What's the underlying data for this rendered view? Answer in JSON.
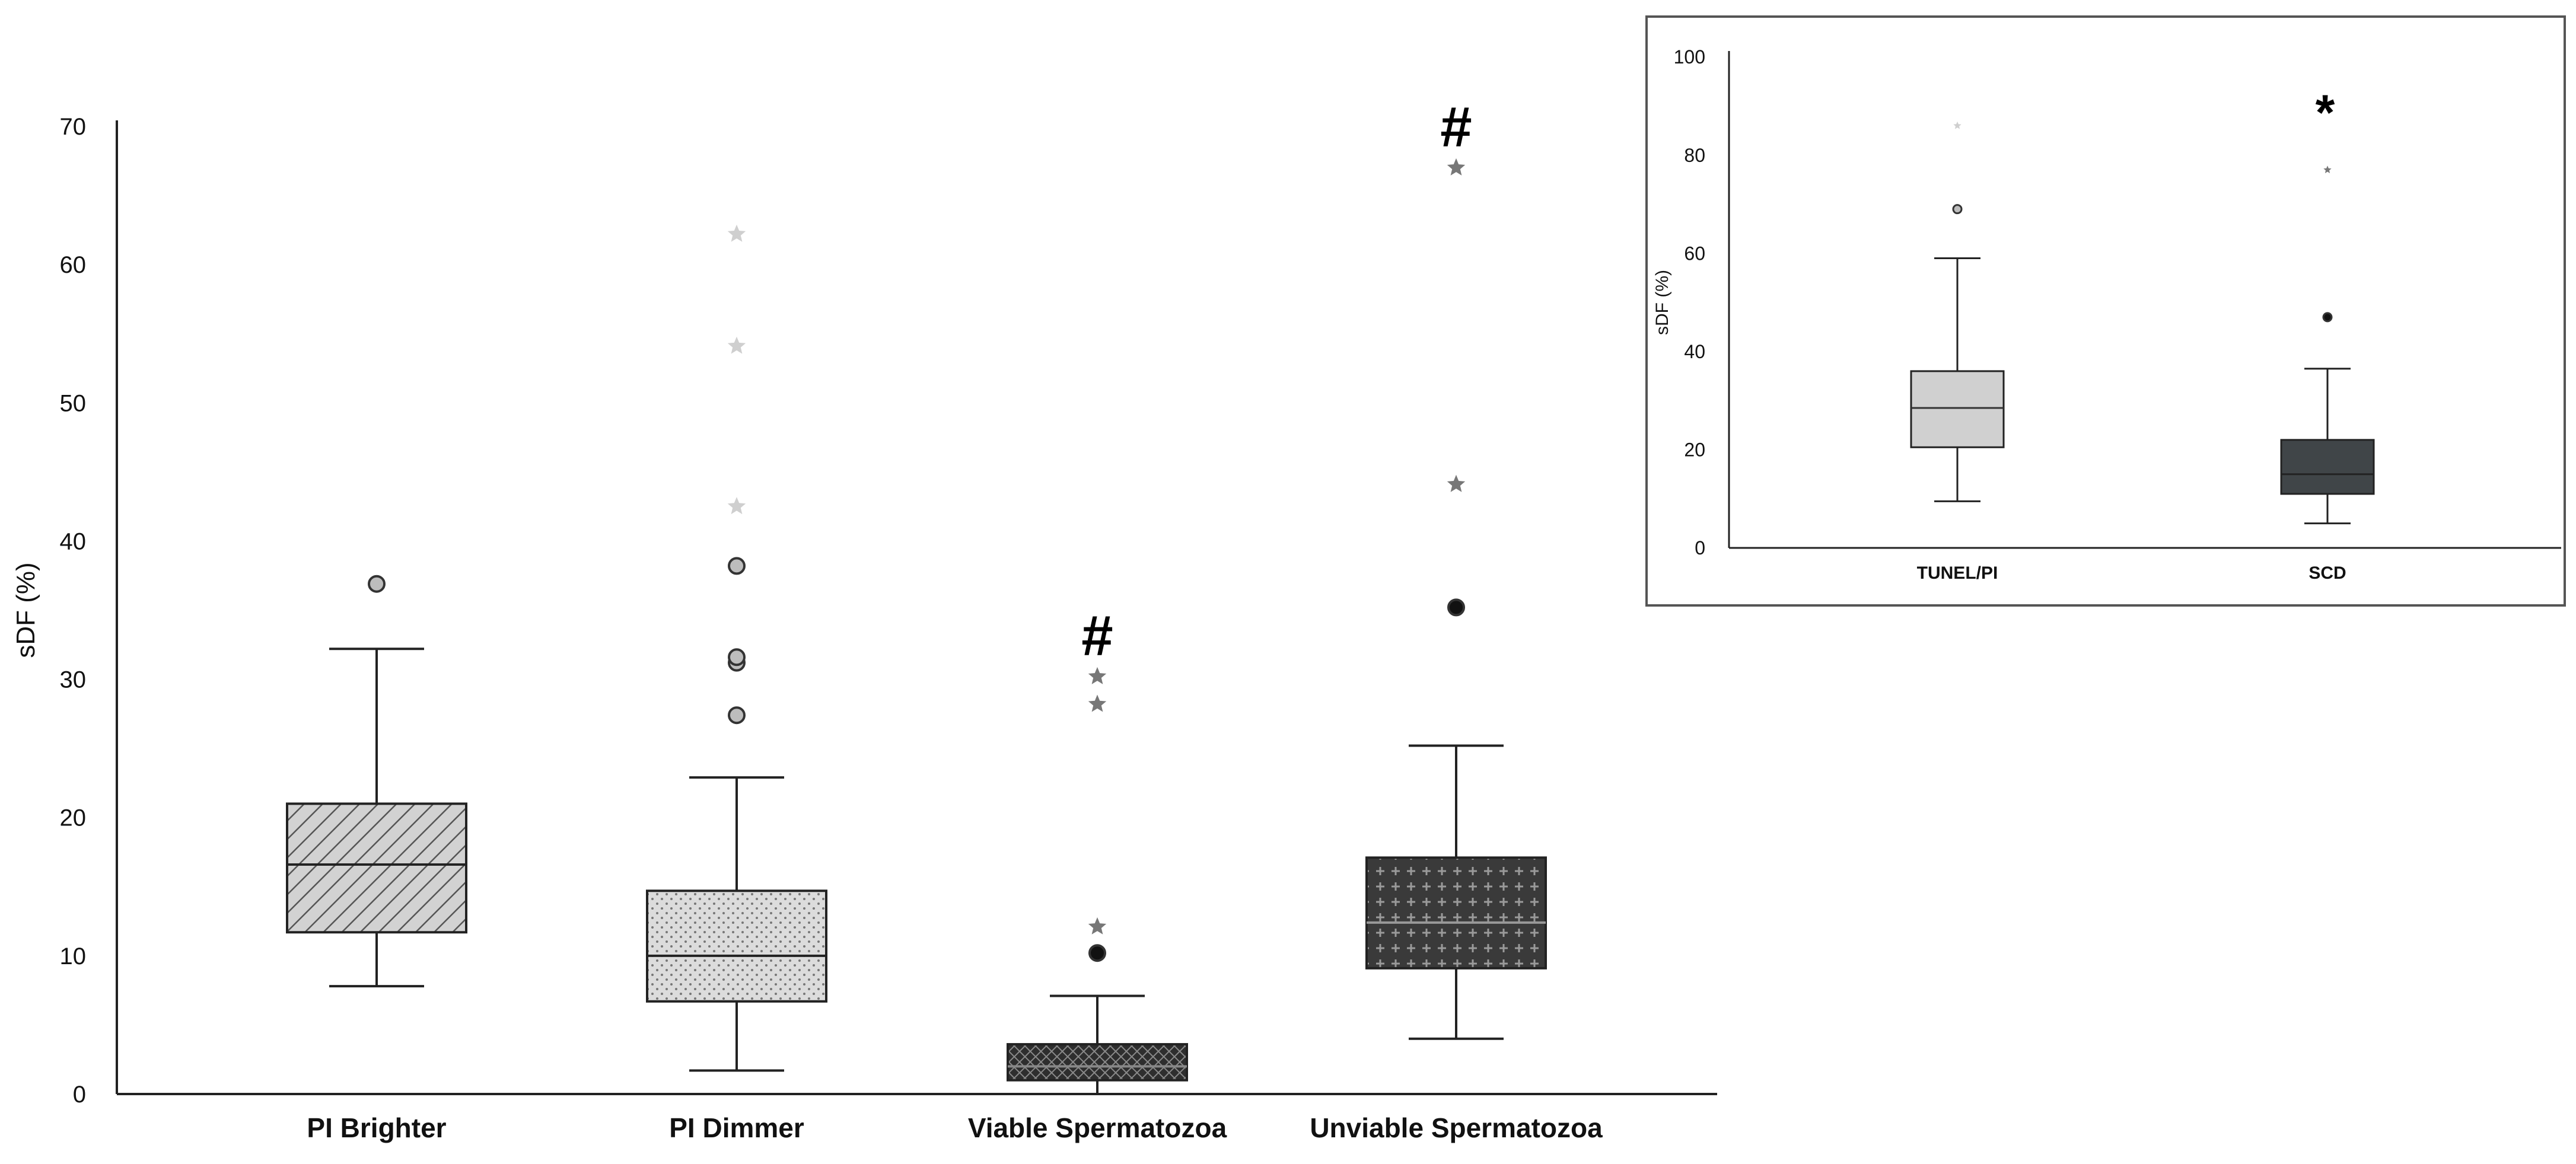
{
  "chart_data": [
    {
      "type": "box",
      "ylabel": "sDF (%)",
      "ylim": [
        0,
        70
      ],
      "yticks": [
        0,
        10,
        20,
        30,
        40,
        50,
        60,
        70
      ],
      "categories": [
        "PI Brighter",
        "PI Dimmer",
        "Viable Spermatozoa",
        "Unviable Spermatozoa"
      ],
      "boxes": [
        {
          "name": "PI Brighter",
          "whisker_low": 7.8,
          "q1": 11.7,
          "median": 16.6,
          "q3": 21.0,
          "whisker_high": 32.2,
          "outliers": [
            36.9
          ],
          "extremes": [],
          "annotation": "",
          "pattern": "diagonal-lines",
          "fill": "#cfcfcf"
        },
        {
          "name": "PI Dimmer",
          "whisker_low": 1.7,
          "q1": 6.7,
          "median": 10.0,
          "q3": 14.7,
          "whisker_high": 22.9,
          "outliers": [
            27.4,
            31.2,
            31.6,
            38.2
          ],
          "extremes": [
            42.5,
            54.1,
            62.2
          ],
          "annotation": "",
          "pattern": "dots",
          "fill": "#d9d9d9"
        },
        {
          "name": "Viable Spermatozoa",
          "whisker_low": 0.0,
          "q1": 1.0,
          "median": 2.0,
          "q3": 3.6,
          "whisker_high": 7.1,
          "outliers": [
            10.2
          ],
          "extremes": [
            12.1,
            28.2,
            30.2
          ],
          "annotation": "#",
          "pattern": "crosshatch",
          "fill": "#333333"
        },
        {
          "name": "Unviable Spermatozoa",
          "whisker_low": 4.0,
          "q1": 9.1,
          "median": 12.4,
          "q3": 17.1,
          "whisker_high": 25.2,
          "outliers": [
            35.2
          ],
          "extremes": [
            44.1,
            67.0
          ],
          "annotation": "#",
          "pattern": "crosses",
          "fill": "#3a3a3a"
        }
      ]
    },
    {
      "type": "box",
      "ylabel": "sDF (%)",
      "ylim": [
        0,
        100
      ],
      "yticks": [
        0,
        20,
        40,
        60,
        80,
        100
      ],
      "categories": [
        "TUNEL/PI",
        "SCD"
      ],
      "boxes": [
        {
          "name": "TUNEL/PI",
          "whisker_low": 9.5,
          "q1": 20.5,
          "median": 28.5,
          "q3": 36.0,
          "whisker_high": 59.0,
          "outliers": [
            69.0
          ],
          "extremes": [
            86.0
          ],
          "annotation": "",
          "fill": "#d0d0d0"
        },
        {
          "name": "SCD",
          "whisker_low": 5.0,
          "q1": 11.0,
          "median": 15.0,
          "q3": 22.0,
          "whisker_high": 36.5,
          "outliers": [
            47.0
          ],
          "extremes": [
            77.0
          ],
          "annotation": "*",
          "fill": "#404548"
        }
      ]
    }
  ]
}
